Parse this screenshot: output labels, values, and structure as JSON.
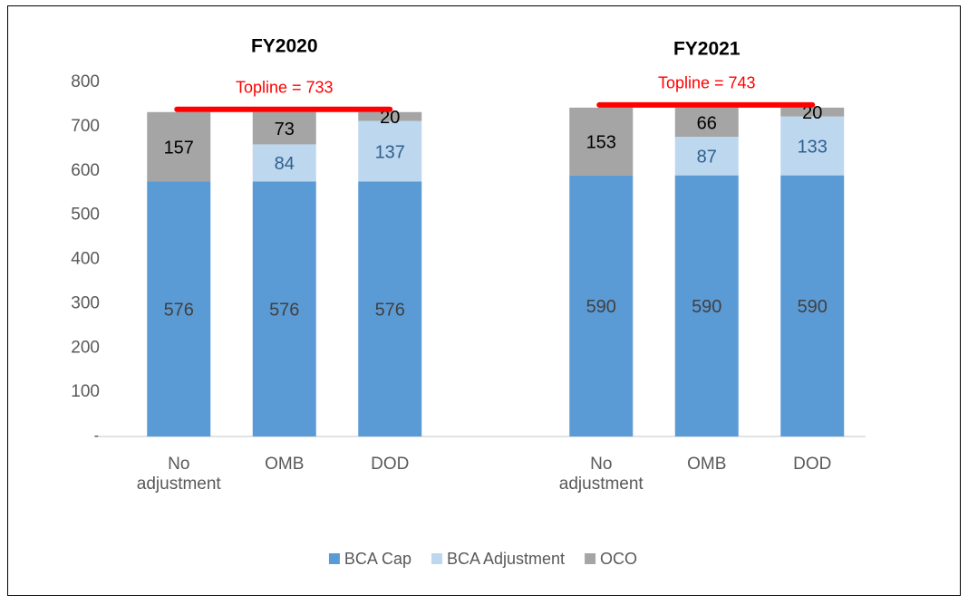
{
  "chart_data": {
    "type": "stacked_bar",
    "categories": [
      "No adjustment",
      "OMB",
      "DOD",
      null,
      "No adjustment",
      "OMB",
      "DOD"
    ],
    "groups": [
      {
        "title": "FY2020",
        "annotation": "Topline = 733",
        "topline": 733
      },
      {
        "title": "FY2021",
        "annotation": "Topline = 743",
        "topline": 743
      }
    ],
    "series": [
      {
        "name": "BCA Cap",
        "color": "#5b9bd5",
        "label_color": "#404040",
        "values": [
          576,
          576,
          576,
          null,
          590,
          590,
          590
        ]
      },
      {
        "name": "BCA Adjustment",
        "color": "#bdd7ee",
        "label_color": "#2f5f8f",
        "values": [
          null,
          84,
          137,
          null,
          null,
          87,
          133
        ]
      },
      {
        "name": "OCO",
        "color": "#a5a5a5",
        "label_color": "#000000",
        "values": [
          157,
          73,
          20,
          null,
          153,
          66,
          20
        ]
      }
    ],
    "ylim": [
      0,
      800
    ],
    "yticks": [
      {
        "value": 0,
        "label": "-"
      },
      100,
      200,
      300,
      400,
      500,
      600,
      700,
      800
    ],
    "legend": "bottom",
    "annotation_color": "#ff0000"
  }
}
